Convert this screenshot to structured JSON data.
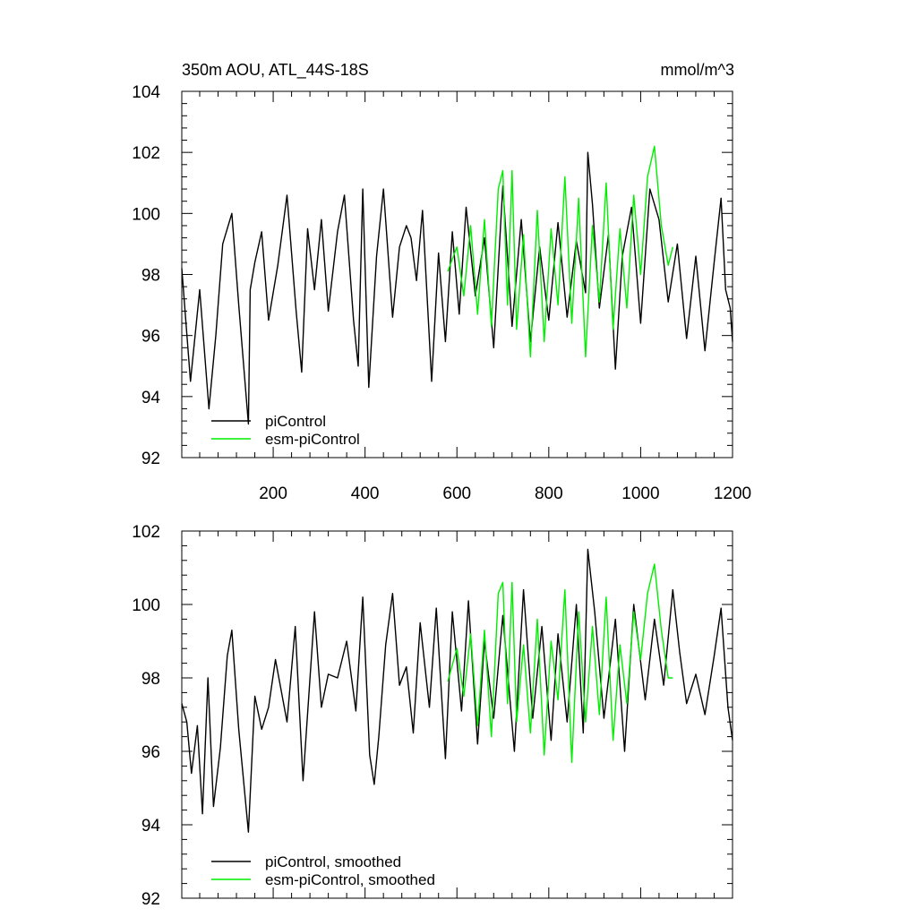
{
  "title_left": "350m AOU, ATL_44S-18S",
  "title_right": "mmol/m^3",
  "colors": {
    "piControl": "#000000",
    "esm_piControl": "#00ee00"
  },
  "chart_data": [
    {
      "type": "line",
      "panel": "top",
      "title": "350m AOU, ATL_44S-18S",
      "units": "mmol/m^3",
      "xlim": [
        1,
        1200
      ],
      "ylim": [
        92,
        104
      ],
      "xticks": [
        200,
        400,
        600,
        800,
        1000,
        1200
      ],
      "yticks": [
        92,
        94,
        96,
        98,
        100,
        102,
        104
      ],
      "legend": [
        "piControl",
        "esm-piControl"
      ],
      "legend_position": "bottom-left",
      "series": [
        {
          "name": "piControl",
          "x": [
            1,
            20,
            40,
            60,
            75,
            90,
            110,
            125,
            146,
            150,
            160,
            175,
            190,
            210,
            230,
            250,
            262,
            275,
            290,
            305,
            320,
            340,
            355,
            375,
            385,
            395,
            408,
            425,
            440,
            460,
            475,
            490,
            500,
            512,
            525,
            545,
            560,
            575,
            590,
            605,
            620,
            640,
            660,
            680,
            700,
            720,
            740,
            760,
            780,
            800,
            820,
            840,
            860,
            880,
            885,
            895,
            910,
            930,
            945,
            960,
            980,
            1000,
            1020,
            1040,
            1060,
            1080,
            1100,
            1120,
            1140,
            1160,
            1175,
            1185,
            1195,
            1200
          ],
          "values": [
            98.2,
            94.5,
            97.5,
            93.6,
            96.0,
            99.0,
            100.0,
            97.0,
            93.1,
            97.5,
            98.4,
            99.4,
            96.5,
            98.3,
            100.6,
            96.8,
            94.8,
            99.5,
            97.5,
            99.8,
            96.8,
            99.4,
            100.6,
            96.5,
            95.0,
            100.8,
            94.3,
            98.6,
            100.8,
            96.6,
            98.9,
            99.6,
            99.2,
            97.8,
            100.1,
            94.5,
            98.7,
            95.8,
            99.4,
            96.7,
            100.2,
            97.3,
            99.2,
            95.6,
            100.9,
            96.3,
            99.8,
            95.8,
            98.9,
            96.5,
            99.7,
            96.6,
            99.1,
            97.4,
            102.0,
            100.3,
            96.9,
            99.3,
            94.9,
            98.6,
            100.2,
            96.4,
            100.8,
            99.8,
            97.1,
            99.0,
            95.9,
            98.6,
            95.5,
            98.4,
            100.5,
            97.5,
            96.9,
            95.8
          ]
        },
        {
          "name": "esm-piControl",
          "x": [
            580,
            600,
            615,
            630,
            645,
            660,
            675,
            690,
            700,
            710,
            720,
            730,
            745,
            760,
            775,
            790,
            805,
            820,
            835,
            850,
            865,
            880,
            895,
            910,
            925,
            940,
            955,
            970,
            985,
            1000,
            1015,
            1030,
            1045,
            1060,
            1070
          ],
          "values": [
            98.1,
            98.9,
            97.3,
            99.6,
            96.7,
            99.8,
            96.3,
            100.8,
            101.4,
            97.0,
            101.4,
            96.2,
            99.3,
            95.3,
            100.1,
            95.8,
            99.5,
            97.0,
            101.2,
            96.4,
            100.5,
            95.3,
            99.6,
            97.1,
            101.0,
            96.2,
            99.5,
            96.9,
            100.6,
            98.0,
            101.2,
            102.2,
            99.6,
            98.3,
            98.9
          ]
        }
      ]
    },
    {
      "type": "line",
      "panel": "bottom",
      "xlim": [
        1,
        1200
      ],
      "ylim": [
        92,
        102
      ],
      "yticks": [
        92,
        94,
        96,
        98,
        100,
        102
      ],
      "legend": [
        "piControl, smoothed",
        "esm-piControl, smoothed"
      ],
      "legend_position": "bottom-left",
      "series": [
        {
          "name": "piControl, smoothed",
          "x": [
            1,
            12,
            22,
            35,
            46,
            58,
            70,
            85,
            100,
            110,
            125,
            146,
            160,
            175,
            190,
            205,
            230,
            248,
            265,
            290,
            305,
            320,
            340,
            360,
            380,
            395,
            410,
            420,
            430,
            445,
            460,
            475,
            490,
            505,
            520,
            540,
            555,
            575,
            590,
            610,
            625,
            645,
            660,
            680,
            700,
            725,
            745,
            765,
            785,
            805,
            820,
            840,
            860,
            875,
            885,
            900,
            920,
            945,
            965,
            985,
            1010,
            1030,
            1050,
            1070,
            1085,
            1100,
            1120,
            1140,
            1160,
            1175,
            1190,
            1200
          ],
          "values": [
            97.3,
            96.8,
            95.4,
            96.7,
            94.3,
            98.0,
            94.5,
            96.1,
            98.6,
            99.3,
            96.6,
            93.8,
            97.5,
            96.6,
            97.2,
            98.5,
            96.8,
            99.4,
            95.2,
            99.8,
            97.2,
            98.1,
            98.0,
            99.0,
            97.1,
            100.2,
            95.9,
            95.1,
            96.4,
            98.9,
            100.3,
            97.8,
            98.3,
            96.5,
            99.5,
            97.2,
            99.9,
            95.8,
            99.8,
            97.1,
            100.1,
            96.2,
            99.0,
            96.9,
            99.7,
            96.0,
            100.4,
            96.9,
            99.4,
            96.3,
            99.2,
            96.8,
            100.0,
            96.5,
            101.5,
            99.8,
            96.9,
            99.6,
            96.0,
            100.0,
            97.4,
            99.6,
            97.8,
            100.4,
            98.7,
            97.3,
            98.1,
            97.0,
            98.6,
            99.9,
            97.2,
            96.3
          ]
        },
        {
          "name": "esm-piControl, smoothed",
          "x": [
            580,
            600,
            615,
            630,
            645,
            660,
            675,
            690,
            700,
            710,
            720,
            730,
            745,
            760,
            775,
            790,
            805,
            820,
            835,
            850,
            865,
            880,
            895,
            910,
            925,
            940,
            955,
            970,
            985,
            1000,
            1015,
            1030,
            1045,
            1060,
            1070
          ],
          "values": [
            97.9,
            98.8,
            97.5,
            99.2,
            96.7,
            99.3,
            96.4,
            100.3,
            100.6,
            97.3,
            100.6,
            96.8,
            98.9,
            96.5,
            99.6,
            95.9,
            99.0,
            97.4,
            100.4,
            95.7,
            99.8,
            96.8,
            99.4,
            97.0,
            100.2,
            96.3,
            98.9,
            97.3,
            99.8,
            98.5,
            100.3,
            101.1,
            99.3,
            98.0,
            98.0
          ]
        }
      ]
    }
  ]
}
